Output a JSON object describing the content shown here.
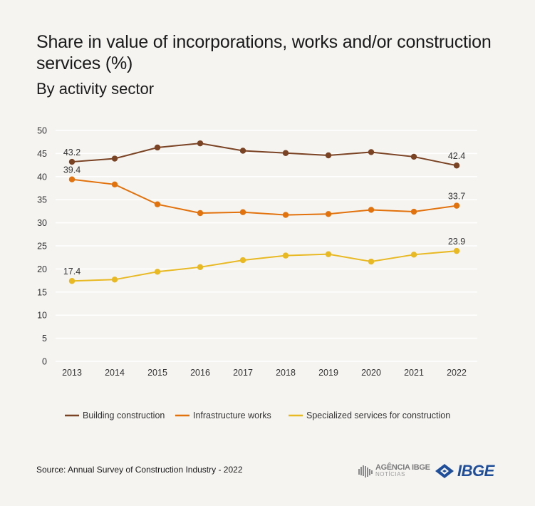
{
  "title": "Share in value of incorporations, works and/or construction services (%)",
  "subtitle": "By activity sector",
  "source": "Source: Annual Survey of Construction Industry - 2022",
  "logos": {
    "agencia_line1": "AGÊNCIA IBGE",
    "agencia_line2": "NOTÍCIAS",
    "ibge": "IBGE"
  },
  "colors": {
    "background": "#f6f4f1",
    "building": "#7a4324",
    "infrastructure": "#e2720c",
    "specialized": "#e8b922",
    "grid": "#ffffff",
    "ibge_blue": "#1f4e9a"
  },
  "chart_data": {
    "type": "line",
    "title": "Share in value of incorporations, works and/or construction services (%)",
    "subtitle": "By activity sector",
    "x": [
      "2013",
      "2014",
      "2015",
      "2016",
      "2017",
      "2018",
      "2019",
      "2020",
      "2021",
      "2022"
    ],
    "ylim": [
      0,
      50
    ],
    "yticks": [
      0,
      5,
      10,
      15,
      20,
      25,
      30,
      35,
      40,
      45,
      50
    ],
    "grid": true,
    "legend_position": "bottom",
    "series": [
      {
        "name": "Building construction",
        "color": "#7a4324",
        "values": [
          43.2,
          43.9,
          46.3,
          47.2,
          45.6,
          45.1,
          44.6,
          45.3,
          44.3,
          42.4
        ],
        "labels": {
          "2013": "43.2",
          "2022": "42.4"
        }
      },
      {
        "name": "Infrastructure works",
        "color": "#e2720c",
        "values": [
          39.4,
          38.3,
          34.0,
          32.1,
          32.3,
          31.7,
          31.9,
          32.8,
          32.4,
          33.7
        ],
        "labels": {
          "2013": "39.4",
          "2022": "33.7"
        }
      },
      {
        "name": "Specialized services for construction",
        "color": "#e8b922",
        "values": [
          17.4,
          17.7,
          19.4,
          20.4,
          21.9,
          22.9,
          23.2,
          21.6,
          23.1,
          23.9
        ],
        "labels": {
          "2013": "17.4",
          "2022": "23.9"
        }
      }
    ]
  }
}
